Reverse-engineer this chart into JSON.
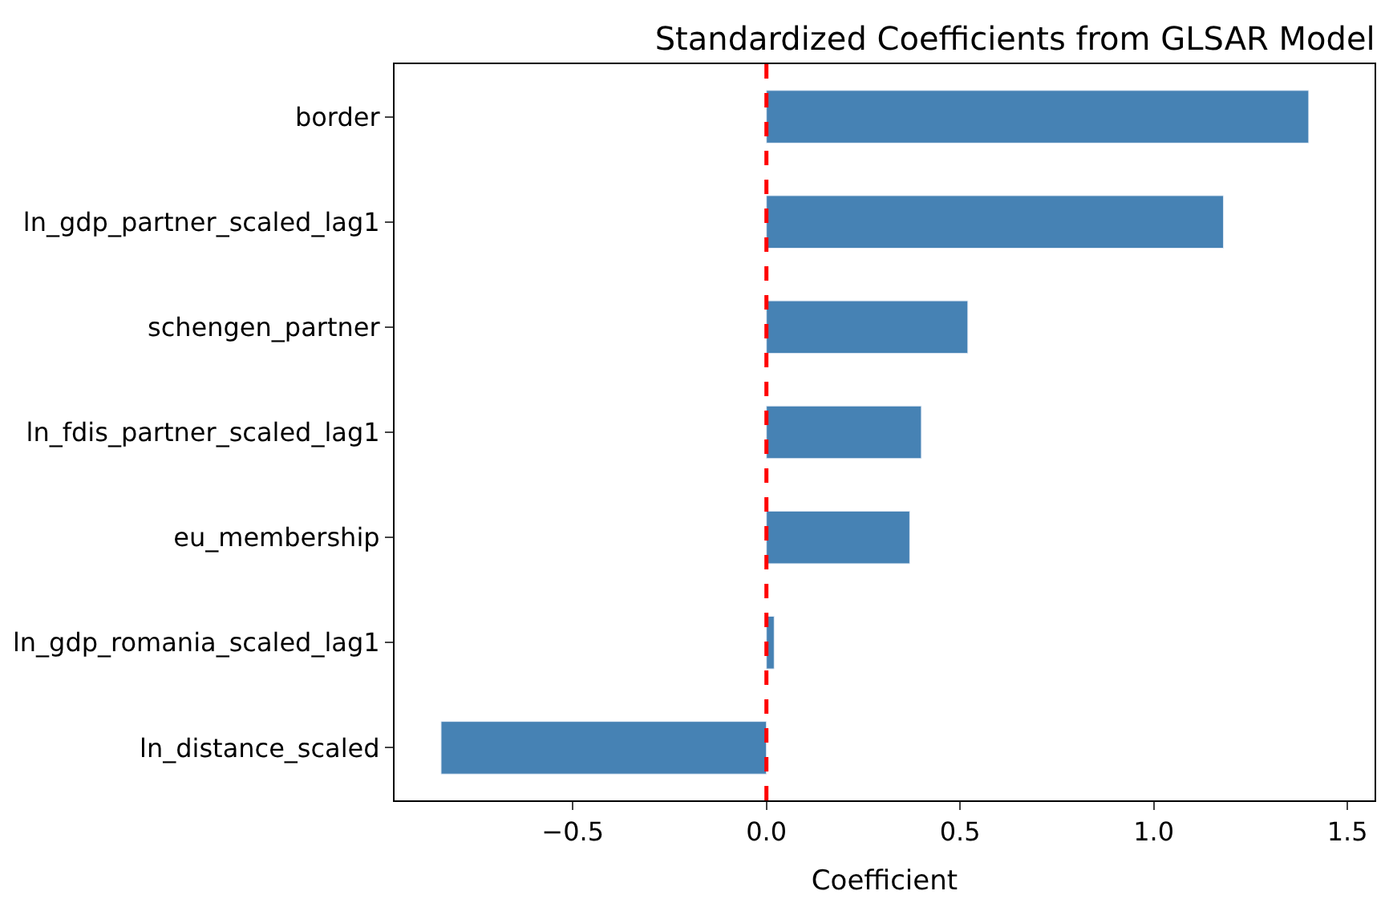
{
  "chart_data": {
    "type": "bar",
    "orientation": "horizontal",
    "title": "Standardized Coefficients from GLSAR Model",
    "xlabel": "Coefficient",
    "categories": [
      "border",
      "ln_gdp_partner_scaled_lag1",
      "schengen_partner",
      "ln_fdis_partner_scaled_lag1",
      "eu_membership",
      "ln_gdp_romania_scaled_lag1",
      "ln_distance_scaled"
    ],
    "values": [
      1.4,
      1.18,
      0.52,
      0.4,
      0.37,
      0.02,
      -0.84
    ],
    "color": "#4682b4",
    "xlim": [
      -0.96,
      1.57
    ],
    "xticks": [
      {
        "value": -0.5,
        "label": "−0.5"
      },
      {
        "value": 0,
        "label": "0.0"
      },
      0.5,
      {
        "value": 1,
        "label": "1.0"
      },
      1.5
    ],
    "ref_lines": [
      {
        "axis": "x",
        "value": 0,
        "color": "#ff0000",
        "line_style": "dashed"
      }
    ],
    "legend": false
  }
}
